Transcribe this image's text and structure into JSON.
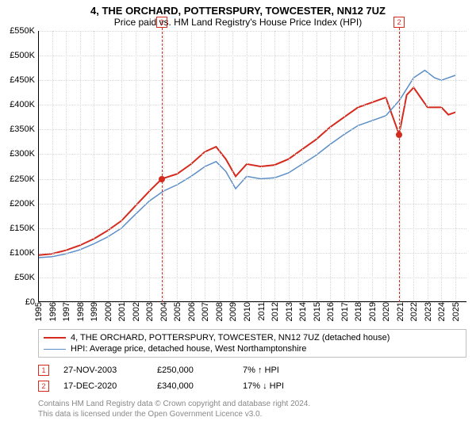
{
  "title": "4, THE ORCHARD, POTTERSPURY, TOWCESTER, NN12 7UZ",
  "subtitle": "Price paid vs. HM Land Registry's House Price Index (HPI)",
  "chart": {
    "type": "line",
    "xlim": [
      1995,
      2025.8
    ],
    "ylim": [
      0,
      550000
    ],
    "ytick_step": 50000,
    "ytick_labels": [
      "£0",
      "£50K",
      "£100K",
      "£150K",
      "£200K",
      "£250K",
      "£300K",
      "£350K",
      "£400K",
      "£450K",
      "£500K",
      "£550K"
    ],
    "xticks": [
      1995,
      1996,
      1997,
      1998,
      1999,
      2000,
      2001,
      2002,
      2003,
      2004,
      2005,
      2006,
      2007,
      2008,
      2009,
      2010,
      2011,
      2012,
      2013,
      2014,
      2015,
      2016,
      2017,
      2018,
      2019,
      2020,
      2021,
      2022,
      2023,
      2024,
      2025
    ],
    "grid_color": "#d8d8d8",
    "axis_color": "#000000",
    "background_color": "#ffffff",
    "title_fontsize": 13,
    "label_fontsize": 11,
    "series": [
      {
        "name": "property",
        "label": "4, THE ORCHARD, POTTERSPURY, TOWCESTER, NN12 7UZ (detached house)",
        "color": "#d52b1e",
        "line_width": 2,
        "points": [
          [
            1995.0,
            95000
          ],
          [
            1996.0,
            98000
          ],
          [
            1997.0,
            105000
          ],
          [
            1998.0,
            115000
          ],
          [
            1999.0,
            128000
          ],
          [
            2000.0,
            145000
          ],
          [
            2001.0,
            165000
          ],
          [
            2002.0,
            195000
          ],
          [
            2003.0,
            225000
          ],
          [
            2003.9,
            250000
          ],
          [
            2005.0,
            260000
          ],
          [
            2006.0,
            280000
          ],
          [
            2007.0,
            305000
          ],
          [
            2007.8,
            315000
          ],
          [
            2008.5,
            290000
          ],
          [
            2009.2,
            255000
          ],
          [
            2010.0,
            280000
          ],
          [
            2011.0,
            275000
          ],
          [
            2012.0,
            278000
          ],
          [
            2013.0,
            290000
          ],
          [
            2014.0,
            310000
          ],
          [
            2015.0,
            330000
          ],
          [
            2016.0,
            355000
          ],
          [
            2017.0,
            375000
          ],
          [
            2018.0,
            395000
          ],
          [
            2019.0,
            405000
          ],
          [
            2020.0,
            415000
          ],
          [
            2020.96,
            340000
          ],
          [
            2021.5,
            420000
          ],
          [
            2022.0,
            435000
          ],
          [
            2023.0,
            395000
          ],
          [
            2024.0,
            395000
          ],
          [
            2024.5,
            380000
          ],
          [
            2025.0,
            385000
          ]
        ]
      },
      {
        "name": "hpi",
        "label": "HPI: Average price, detached house, West Northamptonshire",
        "color": "#5b8fc7",
        "line_width": 1.5,
        "points": [
          [
            1995.0,
            90000
          ],
          [
            1996.0,
            92000
          ],
          [
            1997.0,
            98000
          ],
          [
            1998.0,
            106000
          ],
          [
            1999.0,
            118000
          ],
          [
            2000.0,
            132000
          ],
          [
            2001.0,
            150000
          ],
          [
            2002.0,
            178000
          ],
          [
            2003.0,
            205000
          ],
          [
            2004.0,
            225000
          ],
          [
            2005.0,
            238000
          ],
          [
            2006.0,
            255000
          ],
          [
            2007.0,
            275000
          ],
          [
            2007.8,
            285000
          ],
          [
            2008.5,
            265000
          ],
          [
            2009.2,
            230000
          ],
          [
            2010.0,
            255000
          ],
          [
            2011.0,
            250000
          ],
          [
            2012.0,
            252000
          ],
          [
            2013.0,
            262000
          ],
          [
            2014.0,
            280000
          ],
          [
            2015.0,
            298000
          ],
          [
            2016.0,
            320000
          ],
          [
            2017.0,
            340000
          ],
          [
            2018.0,
            358000
          ],
          [
            2019.0,
            368000
          ],
          [
            2020.0,
            378000
          ],
          [
            2021.0,
            410000
          ],
          [
            2022.0,
            455000
          ],
          [
            2022.8,
            470000
          ],
          [
            2023.5,
            455000
          ],
          [
            2024.0,
            450000
          ],
          [
            2024.5,
            455000
          ],
          [
            2025.0,
            460000
          ]
        ]
      }
    ],
    "markers": [
      {
        "n": "1",
        "x": 2003.9,
        "y": 250000,
        "color": "#d52b1e"
      },
      {
        "n": "2",
        "x": 2020.96,
        "y": 340000,
        "color": "#d52b1e"
      }
    ],
    "marker_line_color": "#d52b1e"
  },
  "legend": {
    "border_color": "#bfbfbf"
  },
  "sales": [
    {
      "n": "1",
      "date": "27-NOV-2003",
      "price": "£250,000",
      "diff": "7% ↑ HPI",
      "marker_color": "#d52b1e"
    },
    {
      "n": "2",
      "date": "17-DEC-2020",
      "price": "£340,000",
      "diff": "17% ↓ HPI",
      "marker_color": "#d52b1e"
    }
  ],
  "footer": {
    "line1": "Contains HM Land Registry data © Crown copyright and database right 2024.",
    "line2": "This data is licensed under the Open Government Licence v3.0.",
    "color": "#888888"
  }
}
